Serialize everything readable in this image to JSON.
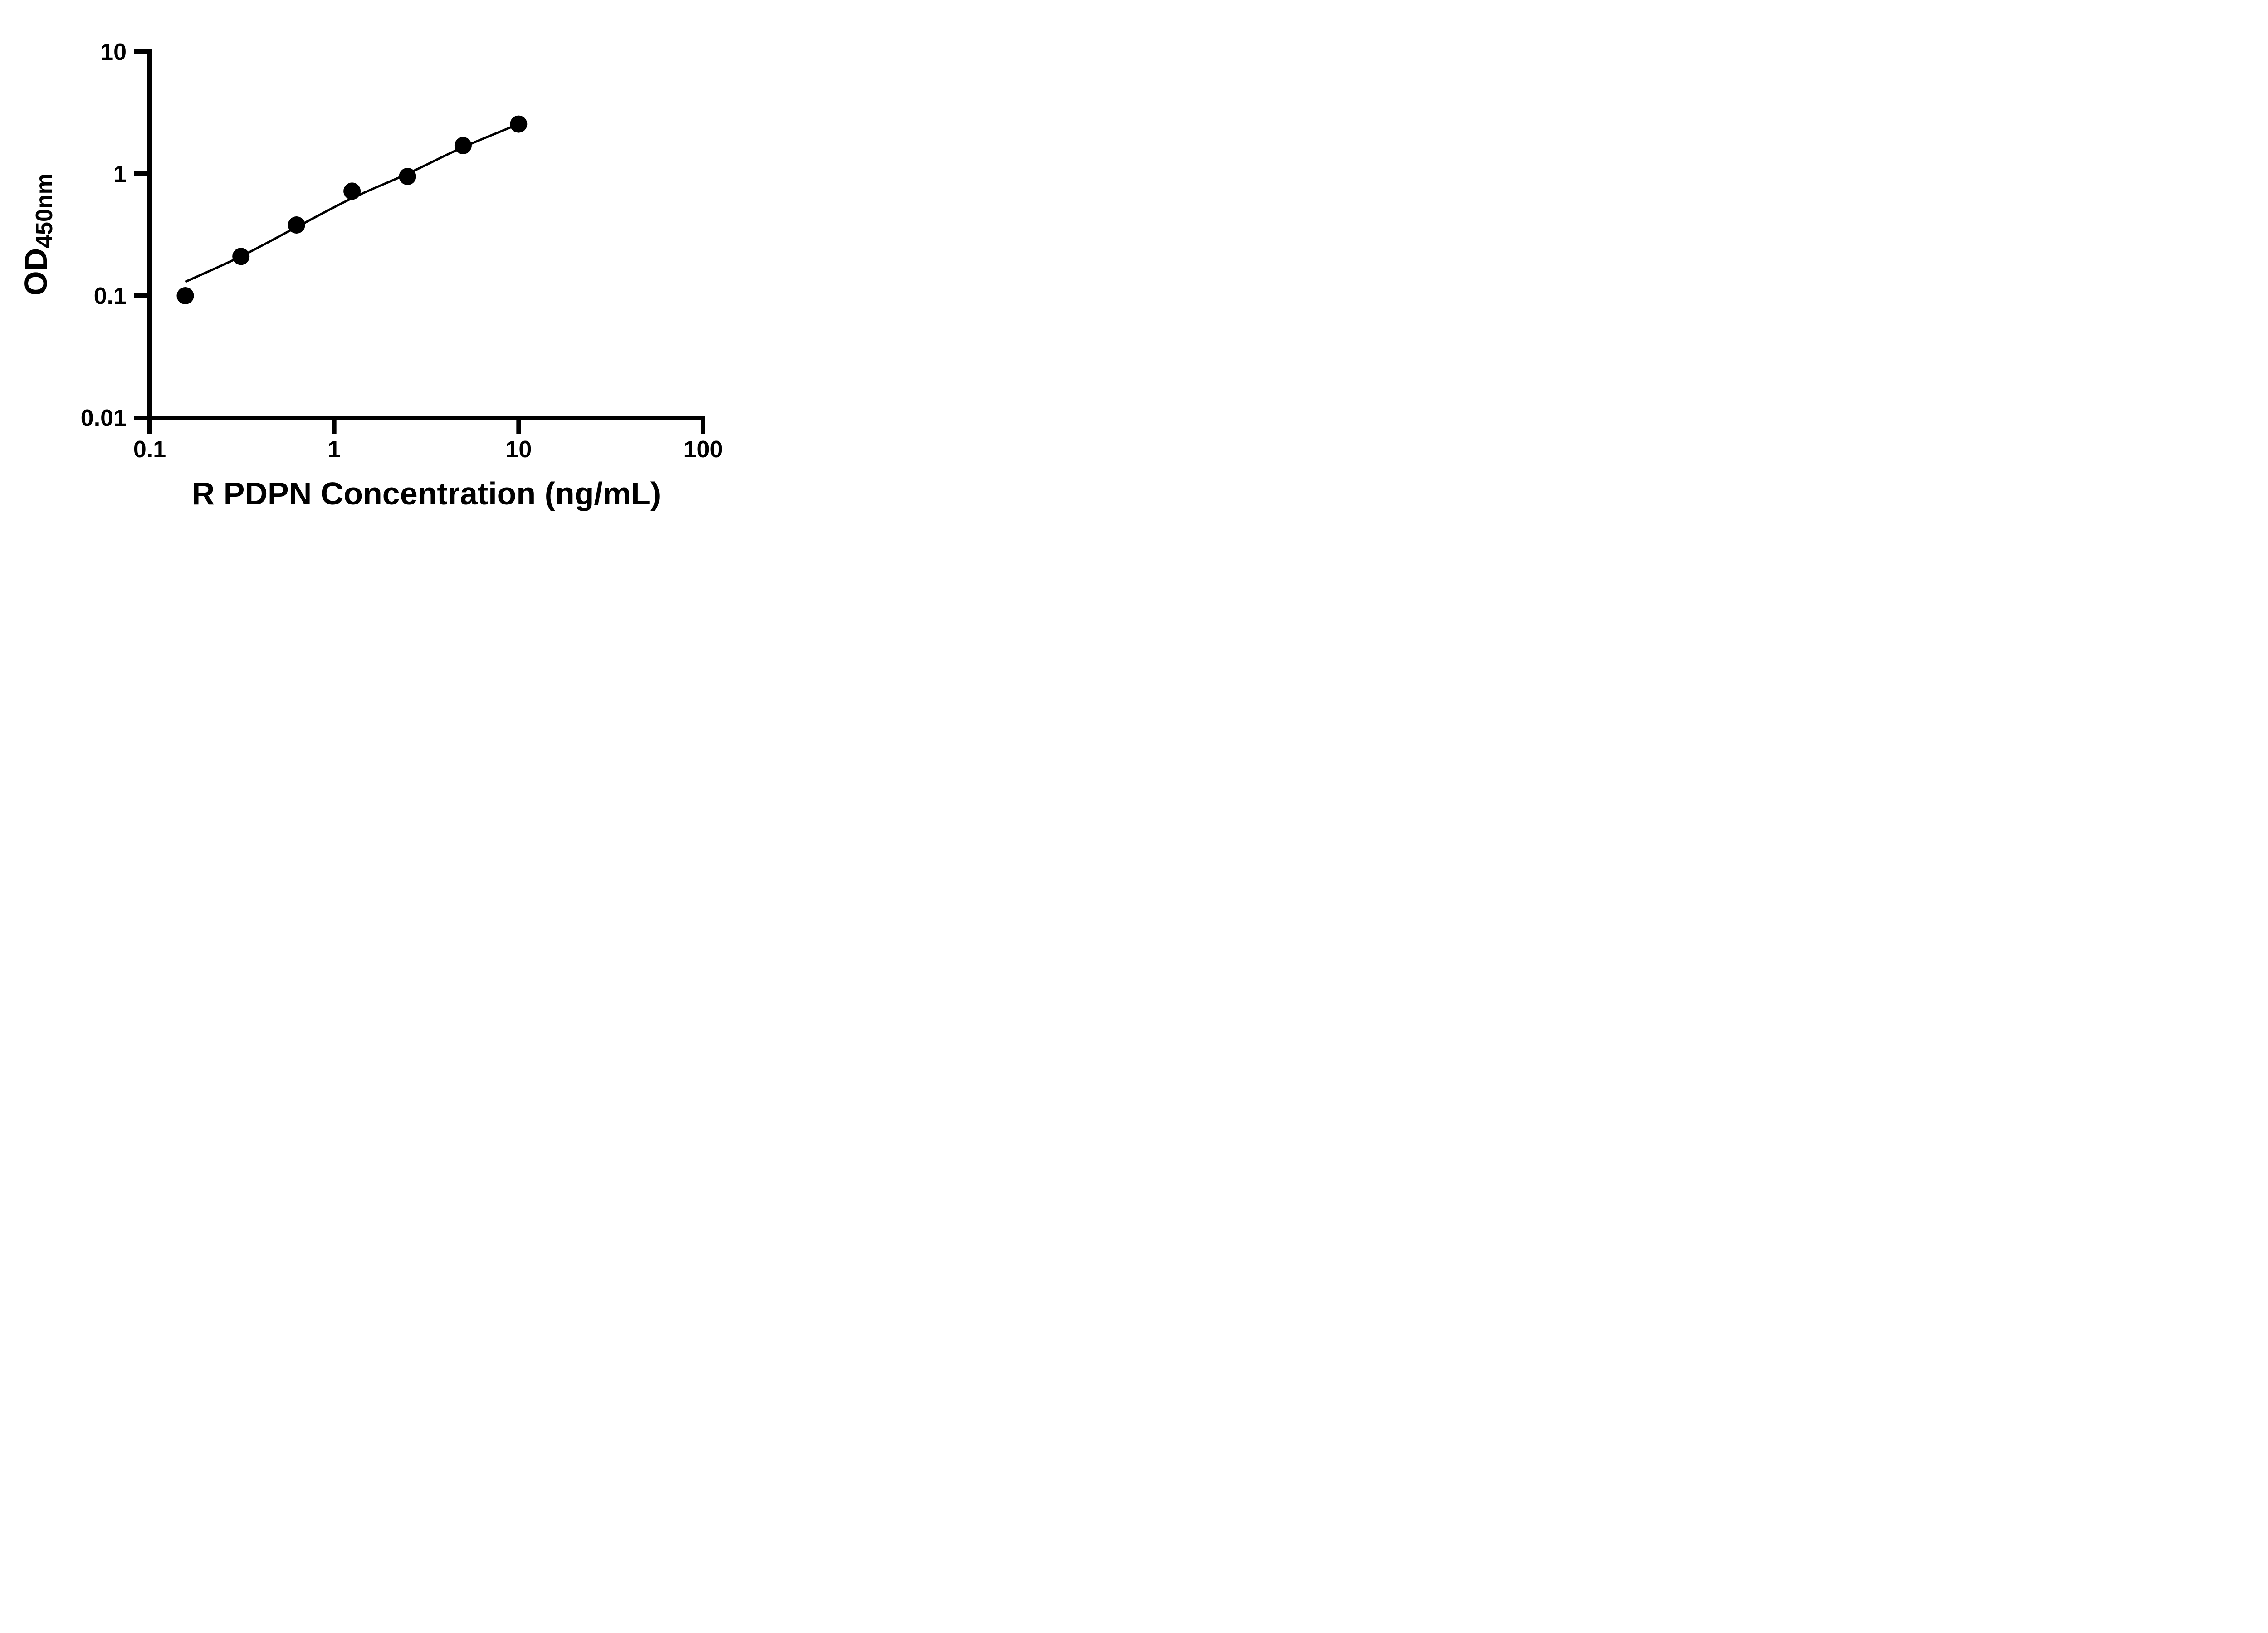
{
  "figure": {
    "background": "#ffffff",
    "foreground": "#000000"
  },
  "chart_data": {
    "type": "scatter",
    "title": "",
    "xlabel": "R PDPN Concentration (ng/mL)",
    "ylabel_main": "OD",
    "ylabel_sub": "450nm",
    "x_scale": "log",
    "y_scale": "log",
    "xlim": [
      0.1,
      100
    ],
    "ylim": [
      0.01,
      10
    ],
    "x_tick_labels": [
      "0.1",
      "1",
      "10",
      "100"
    ],
    "y_tick_labels": [
      "10",
      "1",
      "0.1",
      "0.01"
    ],
    "grid": false,
    "legend": false,
    "marker": "circle",
    "marker_color": "#000000",
    "line_color": "#000000",
    "points": {
      "x": [
        0.156,
        0.3125,
        0.625,
        1.25,
        2.5,
        5,
        10
      ],
      "y": [
        0.1,
        0.21,
        0.38,
        0.72,
        0.95,
        1.7,
        2.55
      ]
    },
    "fit_line": {
      "x": [
        0.156,
        0.3125,
        0.625,
        1.25,
        2.5,
        5,
        10
      ],
      "y": [
        0.13,
        0.21,
        0.365,
        0.63,
        1.0,
        1.65,
        2.55
      ]
    }
  }
}
